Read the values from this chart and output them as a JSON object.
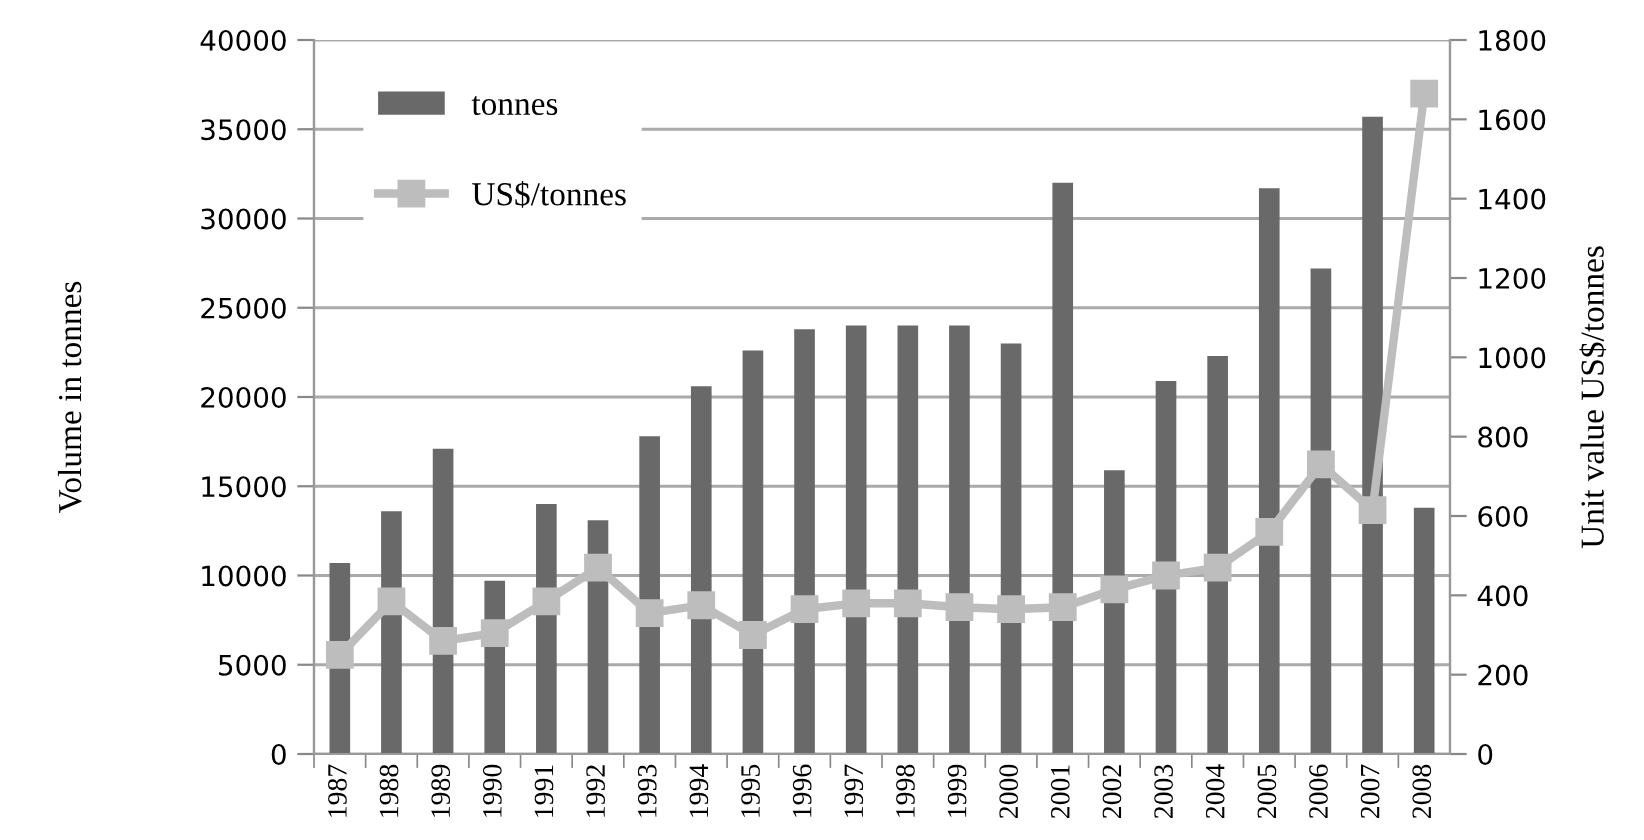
{
  "chart_data": {
    "type": "bar",
    "ylabel": "Volume in tonnes",
    "y2label": "Unit value US$/tonnes",
    "categories": [
      "1987",
      "1988",
      "1989",
      "1990",
      "1991",
      "1992",
      "1993",
      "1994",
      "1995",
      "1996",
      "1997",
      "1998",
      "1999",
      "2000",
      "2001",
      "2002",
      "2003",
      "2004",
      "2005",
      "2006",
      "2007",
      "2008"
    ],
    "series": [
      {
        "name": "tonnes",
        "color": "#696969",
        "values": [
          10700,
          13600,
          17100,
          9700,
          14000,
          13100,
          17800,
          20600,
          22600,
          23800,
          24000,
          24000,
          24000,
          23000,
          32000,
          15900,
          20900,
          22300,
          31700,
          27200,
          35700,
          13800
        ]
      },
      {
        "name": "US$/tonnes",
        "type": "line",
        "axis": "y2",
        "color": "#bdbdbd",
        "marker": "square",
        "values": [
          250,
          385,
          285,
          305,
          385,
          470,
          355,
          375,
          300,
          365,
          380,
          380,
          370,
          365,
          370,
          415,
          450,
          470,
          560,
          730,
          615,
          1665
        ]
      }
    ],
    "ylim": [
      0,
      40000
    ],
    "yticks": [
      0,
      5000,
      10000,
      15000,
      20000,
      25000,
      30000,
      35000,
      40000
    ],
    "y2lim": [
      0,
      1800
    ],
    "y2ticks": [
      0,
      200,
      400,
      600,
      800,
      1000,
      1200,
      1400,
      1600,
      1800
    ],
    "grid": "y",
    "legend": "top left"
  }
}
